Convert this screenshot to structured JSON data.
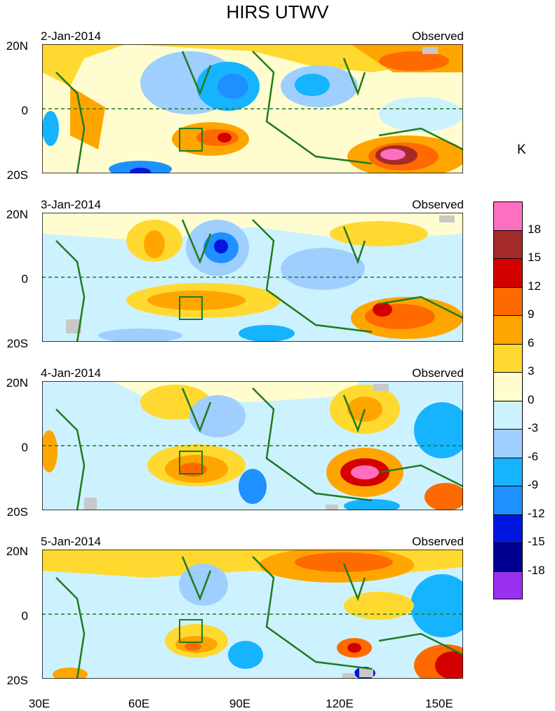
{
  "title": "HIRS UTWV",
  "unit": "K",
  "panels": [
    {
      "date": "2-Jan-2014",
      "label": "Observed"
    },
    {
      "date": "3-Jan-2014",
      "label": "Observed"
    },
    {
      "date": "4-Jan-2014",
      "label": "Observed"
    },
    {
      "date": "5-Jan-2014",
      "label": "Observed"
    }
  ],
  "lat_labels": [
    "20N",
    "0",
    "20S"
  ],
  "lon_labels": [
    "30E",
    "60E",
    "90E",
    "120E",
    "150E"
  ],
  "colorbar": {
    "colors": [
      "#ff6fc0",
      "#a52a2a",
      "#d40000",
      "#ff6a00",
      "#ffa500",
      "#ffd92f",
      "#fffdd0",
      "#cdf2ff",
      "#9ecfff",
      "#16b4ff",
      "#1e90ff",
      "#0016e0",
      "#000090",
      "#9a30f0"
    ],
    "labels": [
      "18",
      "15",
      "12",
      "9",
      "6",
      "3",
      "0",
      "-3",
      "-6",
      "-9",
      "-12",
      "-15",
      "-18"
    ]
  }
}
